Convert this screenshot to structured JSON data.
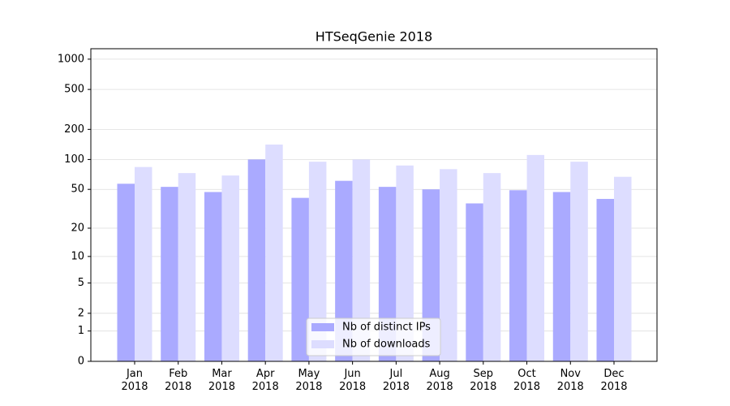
{
  "chart_data": {
    "type": "bar",
    "title": "HTSeqGenie 2018",
    "categories": [
      "Jan\n2018",
      "Feb\n2018",
      "Mar\n2018",
      "Apr\n2018",
      "May\n2018",
      "Jun\n2018",
      "Jul\n2018",
      "Aug\n2018",
      "Sep\n2018",
      "Oct\n2018",
      "Nov\n2018",
      "Dec\n2018"
    ],
    "series": [
      {
        "name": "Nb of distinct IPs",
        "color": "#aaaaff",
        "values": [
          57,
          53,
          47,
          100,
          41,
          61,
          53,
          50,
          36,
          49,
          47,
          40
        ]
      },
      {
        "name": "Nb of downloads",
        "color": "#ddddff",
        "values": [
          84,
          73,
          69,
          141,
          95,
          100,
          87,
          80,
          73,
          111,
          95,
          67
        ]
      }
    ],
    "yscale": "log1p",
    "ylim": [
      0,
      1270
    ],
    "yticks": [
      0,
      1,
      2,
      5,
      10,
      20,
      50,
      100,
      200,
      500,
      1000
    ],
    "grid": true,
    "legend": "lower center"
  }
}
